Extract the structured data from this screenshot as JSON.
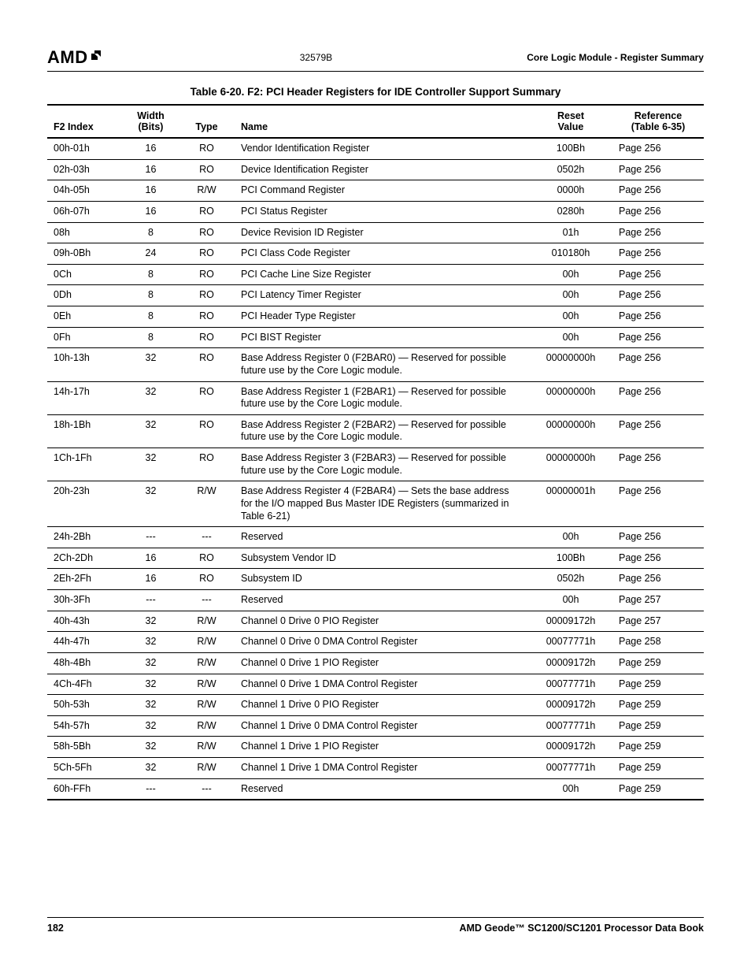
{
  "header": {
    "logo_text": "AMD",
    "doc_code": "32579B",
    "section_title": "Core Logic Module - Register Summary"
  },
  "table": {
    "title": "Table 6-20.  F2: PCI Header Registers for IDE Controller Support Summary",
    "columns": {
      "index": "F2 Index",
      "width_l1": "Width",
      "width_l2": "(Bits)",
      "type": "Type",
      "name": "Name",
      "reset_l1": "Reset",
      "reset_l2": "Value",
      "ref_l1": "Reference",
      "ref_l2": "(Table 6-35)"
    },
    "rows": [
      {
        "index": "00h-01h",
        "width": "16",
        "type": "RO",
        "name": "Vendor Identification Register",
        "reset": "100Bh",
        "ref": "Page 256"
      },
      {
        "index": "02h-03h",
        "width": "16",
        "type": "RO",
        "name": "Device Identification Register",
        "reset": "0502h",
        "ref": "Page 256"
      },
      {
        "index": "04h-05h",
        "width": "16",
        "type": "R/W",
        "name": "PCI Command Register",
        "reset": "0000h",
        "ref": "Page 256"
      },
      {
        "index": "06h-07h",
        "width": "16",
        "type": "RO",
        "name": "PCI Status Register",
        "reset": "0280h",
        "ref": "Page 256"
      },
      {
        "index": "08h",
        "width": "8",
        "type": "RO",
        "name": "Device Revision ID Register",
        "reset": "01h",
        "ref": "Page 256"
      },
      {
        "index": "09h-0Bh",
        "width": "24",
        "type": "RO",
        "name": "PCI Class Code Register",
        "reset": "010180h",
        "ref": "Page 256"
      },
      {
        "index": "0Ch",
        "width": "8",
        "type": "RO",
        "name": "PCI Cache Line Size Register",
        "reset": "00h",
        "ref": "Page 256"
      },
      {
        "index": "0Dh",
        "width": "8",
        "type": "RO",
        "name": "PCI Latency Timer Register",
        "reset": "00h",
        "ref": "Page 256"
      },
      {
        "index": "0Eh",
        "width": "8",
        "type": "RO",
        "name": "PCI Header Type Register",
        "reset": "00h",
        "ref": "Page 256"
      },
      {
        "index": "0Fh",
        "width": "8",
        "type": "RO",
        "name": "PCI BIST Register",
        "reset": "00h",
        "ref": "Page 256"
      },
      {
        "index": "10h-13h",
        "width": "32",
        "type": "RO",
        "name": "Base Address Register 0 (F2BAR0) — Reserved for possible future use by the Core Logic module.",
        "reset": "00000000h",
        "ref": "Page 256"
      },
      {
        "index": "14h-17h",
        "width": "32",
        "type": "RO",
        "name": "Base Address Register 1 (F2BAR1) — Reserved for possible future use by the Core Logic module.",
        "reset": "00000000h",
        "ref": "Page 256"
      },
      {
        "index": "18h-1Bh",
        "width": "32",
        "type": "RO",
        "name": "Base Address Register 2 (F2BAR2) — Reserved for possible future use by the Core Logic module.",
        "reset": "00000000h",
        "ref": "Page 256"
      },
      {
        "index": "1Ch-1Fh",
        "width": "32",
        "type": "RO",
        "name": "Base Address Register 3 (F2BAR3) — Reserved for possible future use by the Core Logic module.",
        "reset": "00000000h",
        "ref": "Page 256"
      },
      {
        "index": "20h-23h",
        "width": "32",
        "type": "R/W",
        "name": "Base Address Register 4 (F2BAR4) — Sets the base address for the I/O mapped Bus Master IDE Registers (summarized in Table 6-21)",
        "reset": "00000001h",
        "ref": "Page 256"
      },
      {
        "index": "24h-2Bh",
        "width": "---",
        "type": "---",
        "name": "Reserved",
        "reset": "00h",
        "ref": "Page 256"
      },
      {
        "index": "2Ch-2Dh",
        "width": "16",
        "type": "RO",
        "name": "Subsystem Vendor ID",
        "reset": "100Bh",
        "ref": "Page 256"
      },
      {
        "index": "2Eh-2Fh",
        "width": "16",
        "type": "RO",
        "name": "Subsystem ID",
        "reset": "0502h",
        "ref": "Page 256"
      },
      {
        "index": "30h-3Fh",
        "width": "---",
        "type": "---",
        "name": "Reserved",
        "reset": "00h",
        "ref": "Page 257"
      },
      {
        "index": "40h-43h",
        "width": "32",
        "type": "R/W",
        "name": "Channel 0 Drive 0 PIO Register",
        "reset": "00009172h",
        "ref": "Page 257"
      },
      {
        "index": "44h-47h",
        "width": "32",
        "type": "R/W",
        "name": "Channel 0 Drive 0 DMA Control Register",
        "reset": "00077771h",
        "ref": "Page 258"
      },
      {
        "index": "48h-4Bh",
        "width": "32",
        "type": "R/W",
        "name": "Channel 0 Drive 1 PIO Register",
        "reset": "00009172h",
        "ref": "Page 259"
      },
      {
        "index": "4Ch-4Fh",
        "width": "32",
        "type": "R/W",
        "name": "Channel 0 Drive 1 DMA Control Register",
        "reset": "00077771h",
        "ref": "Page 259"
      },
      {
        "index": "50h-53h",
        "width": "32",
        "type": "R/W",
        "name": "Channel 1 Drive 0 PIO Register",
        "reset": "00009172h",
        "ref": "Page 259"
      },
      {
        "index": "54h-57h",
        "width": "32",
        "type": "R/W",
        "name": "Channel 1 Drive 0 DMA Control Register",
        "reset": "00077771h",
        "ref": "Page 259"
      },
      {
        "index": "58h-5Bh",
        "width": "32",
        "type": "R/W",
        "name": "Channel 1 Drive 1 PIO Register",
        "reset": "00009172h",
        "ref": "Page 259"
      },
      {
        "index": "5Ch-5Fh",
        "width": "32",
        "type": "R/W",
        "name": "Channel 1 Drive 1 DMA Control Register",
        "reset": "00077771h",
        "ref": "Page 259"
      },
      {
        "index": "60h-FFh",
        "width": "---",
        "type": "---",
        "name": "Reserved",
        "reset": "00h",
        "ref": "Page 259"
      }
    ]
  },
  "footer": {
    "page_number": "182",
    "book_name": "AMD Geode™ SC1200/SC1201 Processor Data Book"
  }
}
